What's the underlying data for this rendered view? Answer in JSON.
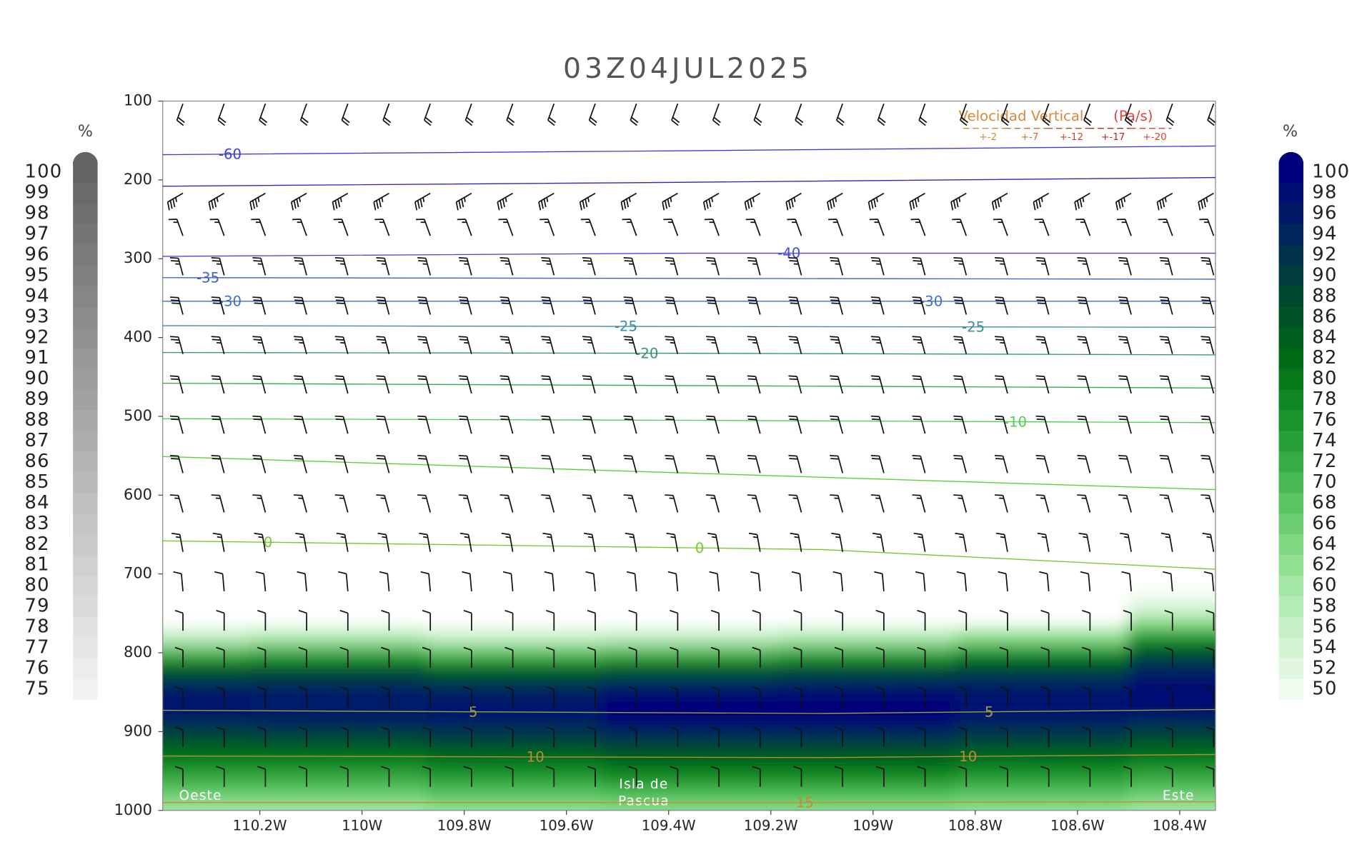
{
  "chart_data": {
    "type": "cross-section",
    "title": "03Z04JUL2025",
    "xlim": [
      -110.39,
      -108.33
    ],
    "xticks": [
      {
        "value": -110.2,
        "label": "110.2W"
      },
      {
        "value": -110.0,
        "label": "110W"
      },
      {
        "value": -109.8,
        "label": "109.8W"
      },
      {
        "value": -109.6,
        "label": "109.6W"
      },
      {
        "value": -109.4,
        "label": "109.4W"
      },
      {
        "value": -109.2,
        "label": "109.2W"
      },
      {
        "value": -109.0,
        "label": "109W"
      },
      {
        "value": -108.8,
        "label": "108.8W"
      },
      {
        "value": -108.6,
        "label": "108.6W"
      },
      {
        "value": -108.4,
        "label": "108.4W"
      }
    ],
    "ylim": [
      1000,
      100
    ],
    "yticks": [
      100,
      200,
      300,
      400,
      500,
      600,
      700,
      800,
      900,
      1000
    ],
    "annotations": [
      "Oeste",
      "Isla de",
      "Pascua",
      "Este"
    ],
    "left_colorbar": {
      "label": "%",
      "colors": [
        "#f2f2f2",
        "#646464"
      ],
      "ticks": [
        75,
        76,
        77,
        78,
        79,
        80,
        81,
        82,
        83,
        84,
        85,
        86,
        87,
        88,
        89,
        90,
        91,
        92,
        93,
        94,
        95,
        96,
        97,
        98,
        99,
        100
      ]
    },
    "right_colorbar": {
      "label": "%",
      "colors": [
        "#f0fbf0",
        "#c4f0c4",
        "#8ee08e",
        "#52c05a",
        "#1e9a30",
        "#007014",
        "#004a2a",
        "#00285a",
        "#00007e"
      ],
      "ticks": [
        50,
        52,
        54,
        56,
        58,
        60,
        62,
        64,
        66,
        68,
        70,
        72,
        74,
        76,
        78,
        80,
        82,
        84,
        86,
        88,
        90,
        92,
        94,
        96,
        98,
        100
      ]
    },
    "humidity": {
      "x": [
        -110.39,
        -110.05,
        -109.7,
        -109.36,
        -109.01,
        -108.67,
        -108.33
      ],
      "pressure": [
        740,
        760,
        780,
        800,
        820,
        840,
        860,
        880,
        900,
        920,
        940,
        960,
        980,
        1000
      ],
      "values": [
        [
          40,
          40,
          40,
          40,
          40,
          40,
          52
        ],
        [
          45,
          46,
          44,
          44,
          45,
          48,
          62
        ],
        [
          56,
          58,
          55,
          56,
          58,
          62,
          75
        ],
        [
          70,
          72,
          68,
          70,
          72,
          76,
          86
        ],
        [
          84,
          85,
          82,
          84,
          86,
          88,
          94
        ],
        [
          93,
          93,
          92,
          94,
          95,
          95,
          98
        ],
        [
          98,
          97,
          97,
          99,
          99,
          98,
          99
        ],
        [
          96,
          96,
          97,
          99,
          99,
          97,
          96
        ],
        [
          90,
          91,
          92,
          95,
          95,
          92,
          90
        ],
        [
          84,
          84,
          86,
          88,
          88,
          86,
          84
        ],
        [
          78,
          78,
          80,
          82,
          82,
          80,
          78
        ],
        [
          72,
          72,
          74,
          76,
          76,
          74,
          72
        ],
        [
          66,
          66,
          68,
          69,
          69,
          68,
          66
        ],
        [
          60,
          60,
          62,
          63,
          63,
          62,
          60
        ]
      ]
    },
    "contours": [
      {
        "level": -60,
        "color": "#3c3cdc",
        "x": [
          -110.39,
          -109.36,
          -108.33
        ],
        "pressure": [
          168,
          163,
          157
        ]
      },
      {
        "level": null,
        "color": "#2828c0",
        "x": [
          -110.39,
          -109.36,
          -108.33
        ],
        "pressure": [
          208,
          203,
          197
        ]
      },
      {
        "level": -40,
        "color": "#4848d8",
        "x": [
          -110.39,
          -109.36,
          -108.33
        ],
        "pressure": [
          297,
          293,
          293
        ]
      },
      {
        "level": -35,
        "color": "#4060c4",
        "x": [
          -110.39,
          -109.36,
          -108.33
        ],
        "pressure": [
          324,
          325,
          326
        ]
      },
      {
        "level": -30,
        "color": "#3c70c8",
        "x": [
          -110.39,
          -109.36,
          -108.33
        ],
        "pressure": [
          354,
          354,
          354
        ]
      },
      {
        "level": -25,
        "color": "#3c8ca0",
        "x": [
          -110.39,
          -109.36,
          -108.33
        ],
        "pressure": [
          385,
          386,
          387
        ]
      },
      {
        "level": -20,
        "color": "#30967a",
        "x": [
          -110.39,
          -109.36,
          -108.33
        ],
        "pressure": [
          419,
          420,
          422
        ]
      },
      {
        "level": null,
        "color": "#30a850",
        "x": [
          -110.39,
          -109.36,
          -108.33
        ],
        "pressure": [
          458,
          461,
          464
        ]
      },
      {
        "level": -10,
        "color": "#50d050",
        "x": [
          -110.39,
          -109.36,
          -108.33
        ],
        "pressure": [
          503,
          505,
          508
        ]
      },
      {
        "level": null,
        "color": "#5cd040",
        "x": [
          -110.39,
          -109.36,
          -108.33
        ],
        "pressure": [
          551,
          572,
          593
        ]
      },
      {
        "level": 0,
        "color": "#74c830",
        "x": [
          -110.39,
          -109.1,
          -108.33
        ],
        "pressure": [
          658,
          669,
          694
        ]
      },
      {
        "level": 5,
        "color": "#a0a040",
        "x": [
          -110.39,
          -109.1,
          -108.33
        ],
        "pressure": [
          873,
          877,
          872
        ]
      },
      {
        "level": 10,
        "color": "#c08a30",
        "x": [
          -110.39,
          -109.1,
          -108.33
        ],
        "pressure": [
          931,
          933,
          929
        ]
      },
      {
        "level": 15,
        "color": "#c88a30",
        "x": [
          -110.39,
          -109.1,
          -108.33
        ],
        "pressure": [
          990,
          990,
          989
        ]
      }
    ],
    "winds": {
      "pressure": [
        100,
        208,
        262,
        312,
        362,
        412,
        462,
        513,
        563,
        613,
        663,
        713,
        763,
        810,
        860,
        911,
        961
      ],
      "speed_kt": [
        20,
        35,
        15,
        25,
        30,
        25,
        20,
        20,
        20,
        15,
        15,
        10,
        10,
        10,
        10,
        10,
        10
      ],
      "direction_deg": [
        200,
        240,
        340,
        345,
        345,
        345,
        345,
        345,
        345,
        345,
        350,
        355,
        0,
        0,
        0,
        0,
        0
      ]
    },
    "vertical_velocity_legend": {
      "title": "Velocidad Vertical",
      "unit": "(Pa/s)",
      "items": [
        {
          "label": "+-2",
          "color": "#d8883c"
        },
        {
          "label": "+-7",
          "color": "#cc6a2c"
        },
        {
          "label": "+-12",
          "color": "#c24a24"
        },
        {
          "label": "+-17",
          "color": "#b42828"
        },
        {
          "label": "+-20",
          "color": "#e03c3c"
        }
      ]
    }
  }
}
